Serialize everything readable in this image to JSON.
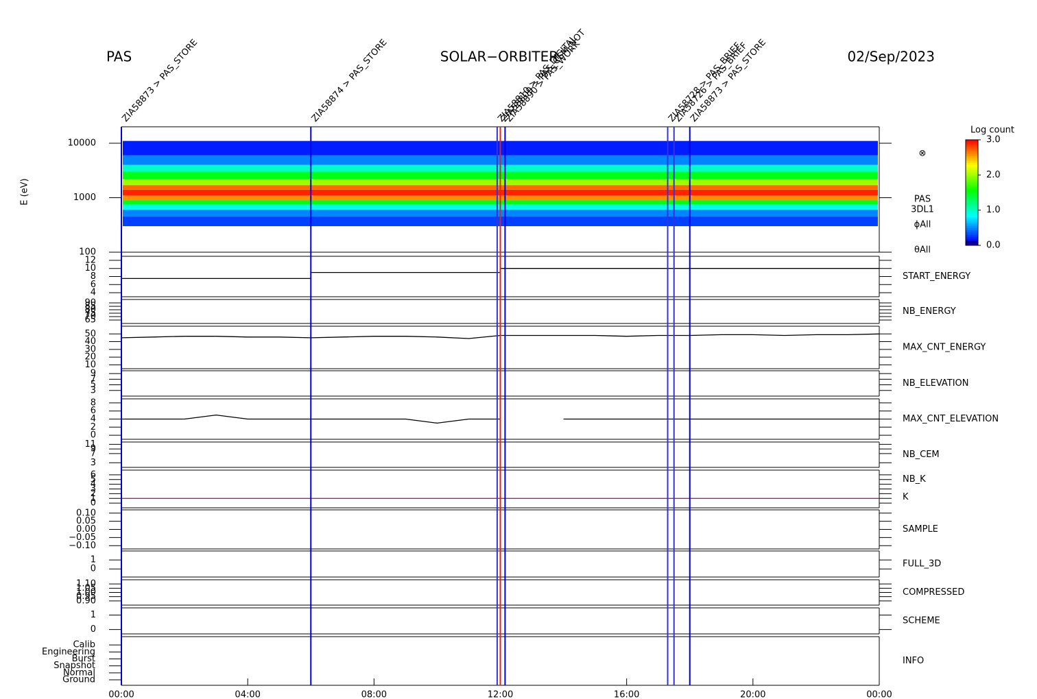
{
  "header": {
    "left": "PAS",
    "center": "SOLAR−ORBITER",
    "right": "02/Sep/2023",
    "side_labels": [
      "⊗",
      "PAS",
      "3DL1",
      "ϕAll",
      "θAll"
    ]
  },
  "x_axis": {
    "xlim": [
      0,
      24
    ],
    "xticks": [
      {
        "value": 0,
        "label": "00:00"
      },
      {
        "value": 4,
        "label": "04:00"
      },
      {
        "value": 8,
        "label": "08:00"
      },
      {
        "value": 12,
        "label": "12:00"
      },
      {
        "value": 16,
        "label": "16:00"
      },
      {
        "value": 20,
        "label": "20:00"
      },
      {
        "value": 24,
        "label": "00:00"
      }
    ]
  },
  "events": [
    {
      "x": 0.0,
      "label": "ZIA58873 > PAS_STORE",
      "color": "#0000dd"
    },
    {
      "x": 6.0,
      "label": "ZIA58874 > PAS_STORE",
      "color": "#0000dd"
    },
    {
      "x": 11.9,
      "label": "ZIA58810 > PAS_DIGITAL",
      "color": "#3333dd"
    },
    {
      "x": 12.0,
      "label": "ZIA58809 > PAS_CEM_NOT",
      "color": "#dd2222"
    },
    {
      "x": 12.15,
      "label": "ZIA58890 > PAS_WORK",
      "color": "#0000dd"
    },
    {
      "x": 17.3,
      "label": "ZIA58728 > PAS_BRIEF",
      "color": "#3333dd"
    },
    {
      "x": 17.5,
      "label": "ZIA58726 > PAS_BRIEF",
      "color": "#3333dd"
    },
    {
      "x": 18.0,
      "label": "ZIA58873 > PAS_STORE",
      "color": "#0000dd"
    }
  ],
  "colorbar": {
    "title": "Log count",
    "clim": [
      0,
      3
    ],
    "cticks": [
      {
        "value": 0,
        "label": "0.0"
      },
      {
        "value": 1,
        "label": "1.0"
      },
      {
        "value": 2,
        "label": "2.0"
      },
      {
        "value": 3,
        "label": "3.0"
      }
    ]
  },
  "chart_data": [
    {
      "type": "heatmap",
      "ylabel": "E (eV)",
      "log_y": true,
      "ylim": [
        100,
        20000
      ],
      "yticks": [
        100,
        1000,
        10000
      ],
      "energy_bins": [
        300,
        450,
        600,
        750,
        900,
        1100,
        1400,
        1700,
        2200,
        3000,
        4000,
        6000,
        11000
      ],
      "log_counts": [
        0.3,
        0.5,
        0.9,
        1.5,
        2.6,
        2.9,
        2.7,
        2.0,
        1.5,
        1.0,
        0.5,
        0.2
      ]
    },
    {
      "type": "line",
      "name": "START_ENERGY",
      "name_color": "#000000",
      "ylim": [
        3,
        13
      ],
      "yticks": [
        4,
        6,
        8,
        10,
        12
      ],
      "series": [
        {
          "x": [
            0,
            6,
            6,
            12,
            12,
            24
          ],
          "values": [
            7.5,
            7.5,
            9,
            9,
            10,
            10
          ],
          "color": "#000000"
        }
      ]
    },
    {
      "type": "line",
      "name": "NB_ENERGY",
      "name_color": "#2222bb",
      "ylim": [
        60,
        95
      ],
      "yticks": [
        65,
        70,
        75,
        80,
        85,
        90
      ]
    },
    {
      "type": "line",
      "name": "MAX_CNT_ENERGY",
      "name_color": "#000000",
      "ylim": [
        5,
        60
      ],
      "yticks": [
        10,
        20,
        30,
        40,
        50
      ],
      "series": [
        {
          "x": [
            0,
            1,
            2,
            3,
            4,
            5,
            6,
            7,
            8,
            9,
            10,
            11,
            12,
            13,
            14,
            15,
            16,
            17,
            18,
            19,
            20,
            21,
            22,
            23,
            24
          ],
          "values": [
            45,
            46,
            47,
            47,
            46,
            46,
            45,
            46,
            47,
            47,
            46,
            44,
            48,
            48,
            48,
            48,
            47,
            48,
            48,
            49,
            49,
            48,
            49,
            49,
            50
          ],
          "color": "#000000"
        }
      ]
    },
    {
      "type": "line",
      "name": "NB_ELEVATION",
      "name_color": "#2222bb",
      "ylim": [
        1,
        10
      ],
      "yticks": [
        3,
        5,
        7,
        9
      ]
    },
    {
      "type": "line",
      "name": "MAX_CNT_ELEVATION",
      "name_color": "#000000",
      "ylim": [
        -1,
        9
      ],
      "yticks": [
        0,
        2,
        4,
        6,
        8
      ],
      "series": [
        {
          "x": [
            0,
            1,
            2,
            3,
            4,
            5,
            6,
            7,
            8,
            9,
            10,
            11,
            12,
            13,
            14,
            15,
            16,
            17,
            18,
            19,
            20,
            21,
            22,
            23,
            24
          ],
          "values": [
            4,
            4,
            4,
            5,
            4,
            4,
            4,
            4,
            4,
            4,
            3,
            4,
            4,
            null,
            4,
            4,
            4,
            4,
            4,
            4,
            4,
            4,
            4,
            4,
            4
          ],
          "color": "#000000"
        }
      ]
    },
    {
      "type": "line",
      "name": "NB_CEM",
      "name_color": "#2222bb",
      "ylim": [
        1,
        12
      ],
      "yticks": [
        3,
        7,
        9,
        11
      ]
    },
    {
      "type": "line",
      "name": "NB_K",
      "name2": "K",
      "name_color": "#dd2222",
      "name2_color": "#2222bb",
      "ylim": [
        -1,
        7
      ],
      "yticks": [
        0,
        1,
        2,
        3,
        4,
        5,
        6
      ],
      "series": [
        {
          "x": [
            0,
            24
          ],
          "values": [
            1,
            1
          ],
          "color": "#aa2266"
        }
      ]
    },
    {
      "type": "line",
      "name": "SAMPLE",
      "name_color": "#2222bb",
      "ylim": [
        -0.12,
        0.12
      ],
      "yticks": [
        {
          "value": -0.1,
          "label": "−0.10"
        },
        {
          "value": -0.05,
          "label": "−0.05"
        },
        {
          "value": 0,
          "label": "0.00"
        },
        {
          "value": 0.05,
          "label": "0.05"
        },
        {
          "value": 0.1,
          "label": "0.10"
        }
      ]
    },
    {
      "type": "line",
      "name": "FULL_3D",
      "name_color": "#2222bb",
      "ylim": [
        -0.9,
        2
      ],
      "yticks": [
        0,
        1
      ]
    },
    {
      "type": "line",
      "name": "COMPRESSED",
      "name_color": "#000000",
      "ylim": [
        0.85,
        1.15
      ],
      "yticks": [
        {
          "value": 0.9,
          "label": "0.90"
        },
        {
          "value": 0.95,
          "label": "0.95"
        },
        {
          "value": 1,
          "label": "1.00"
        },
        {
          "value": 1.05,
          "label": "1.05"
        },
        {
          "value": 1.1,
          "label": "1.10"
        }
      ]
    },
    {
      "type": "line",
      "name": "SCHEME",
      "name_color": "#000000",
      "ylim": [
        -0.3,
        1.5
      ],
      "yticks": [
        0,
        1
      ]
    },
    {
      "type": "category",
      "name": "INFO",
      "name_color": "#000000",
      "categories": [
        "Ground",
        "Normal",
        "Snapshot",
        "Burst",
        "Engineering",
        "Calib"
      ]
    }
  ]
}
